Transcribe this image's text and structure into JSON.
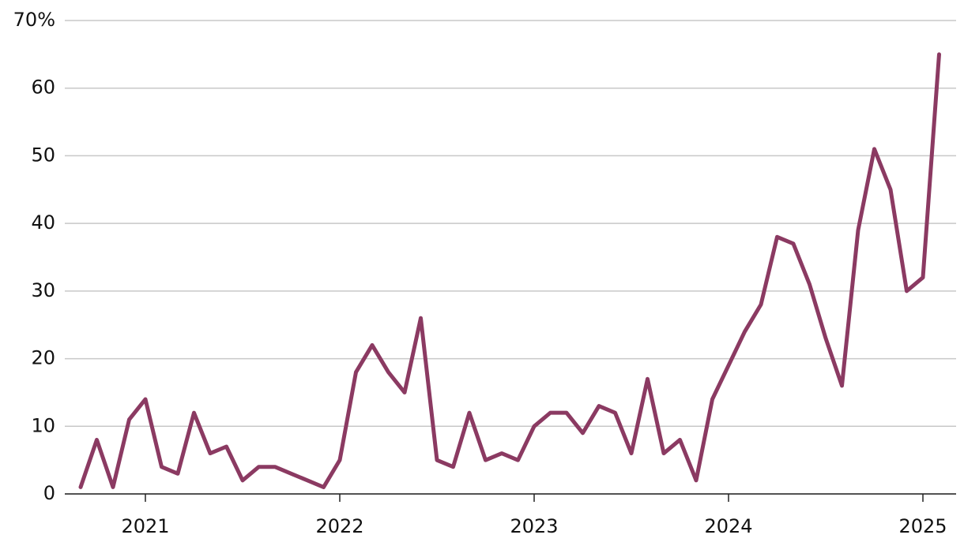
{
  "chart_data": {
    "type": "line",
    "categories": [
      null,
      null,
      null,
      null,
      "2021",
      null,
      null,
      null,
      null,
      null,
      null,
      null,
      null,
      null,
      null,
      null,
      "2022",
      null,
      null,
      null,
      null,
      null,
      null,
      null,
      null,
      null,
      null,
      null,
      "2023",
      null,
      null,
      null,
      null,
      null,
      null,
      null,
      null,
      null,
      null,
      null,
      "2024",
      null,
      null,
      null,
      null,
      null,
      null,
      null,
      null,
      null,
      null,
      null,
      "2025",
      null
    ],
    "values": [
      1,
      8,
      1,
      11,
      14,
      4,
      3,
      12,
      6,
      7,
      2,
      4,
      4,
      3,
      2,
      1,
      5,
      18,
      22,
      18,
      15,
      26,
      5,
      4,
      12,
      5,
      6,
      5,
      10,
      12,
      12,
      9,
      13,
      12,
      6,
      17,
      6,
      8,
      2,
      14,
      19,
      24,
      28,
      38,
      37,
      31,
      23,
      16,
      39,
      51,
      45,
      30,
      32,
      65
    ],
    "color": "#8b3a62",
    "ylim": [
      0,
      70
    ],
    "yticks": [
      0,
      10,
      20,
      30,
      40,
      50,
      60,
      {
        "value": 70,
        "label": "70%"
      }
    ],
    "grid": true
  }
}
